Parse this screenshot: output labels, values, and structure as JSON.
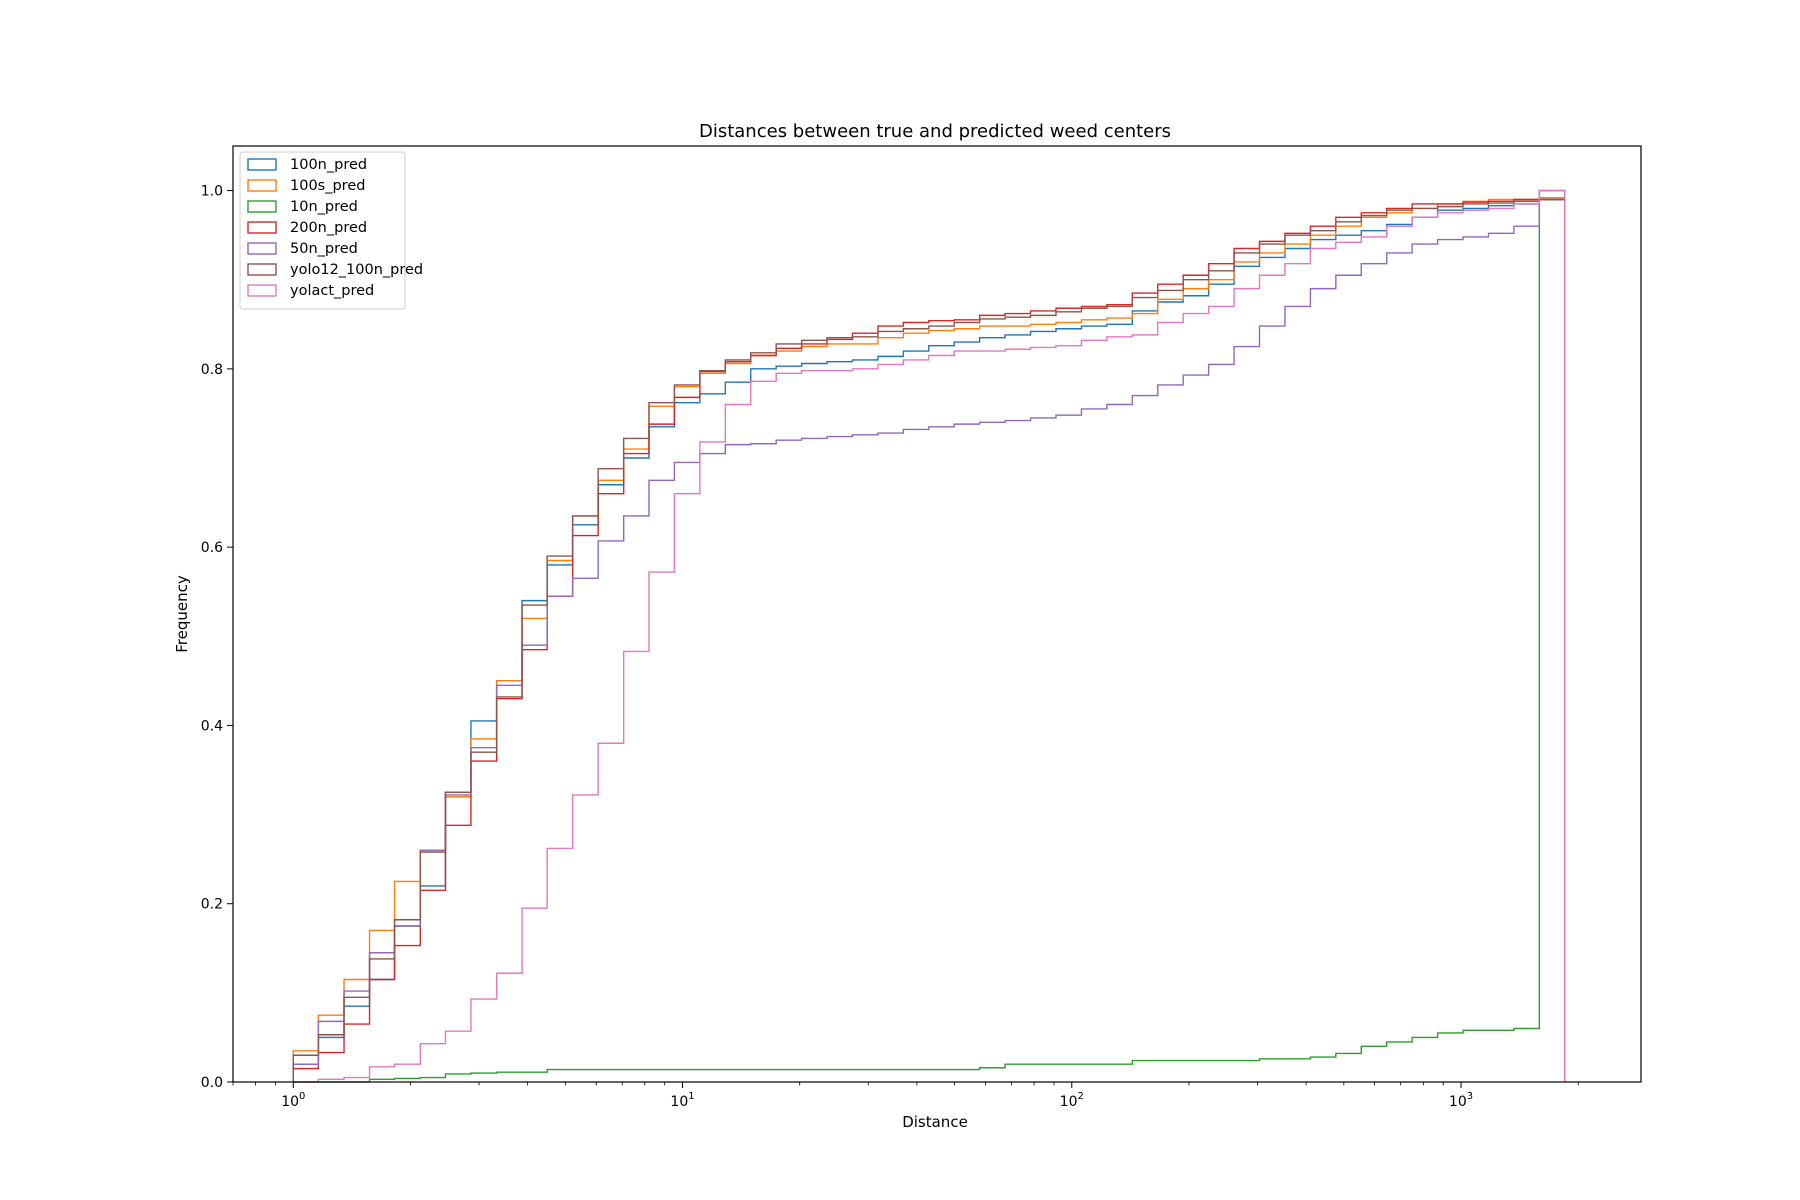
{
  "chart_data": {
    "type": "line",
    "title": "Distances between true and predicted weed centers",
    "xlabel": "Distance",
    "ylabel": "Frequency",
    "xscale": "log",
    "xlim": [
      0.7,
      2900
    ],
    "ylim": [
      0,
      1.05
    ],
    "x_ticks": [
      {
        "value": 1,
        "base": "10",
        "exp": "0"
      },
      {
        "value": 10,
        "base": "10",
        "exp": "1"
      },
      {
        "value": 100,
        "base": "10",
        "exp": "2"
      },
      {
        "value": 1000,
        "base": "10",
        "exp": "3"
      }
    ],
    "y_ticks": [
      "0.0",
      "0.2",
      "0.4",
      "0.6",
      "0.8",
      "1.0"
    ],
    "legend_position": "upper left",
    "histtype": "step-cumulative",
    "bin_edges": [
      1.0,
      1.16,
      1.35,
      1.57,
      1.82,
      2.12,
      2.46,
      2.86,
      3.33,
      3.87,
      4.49,
      5.22,
      6.07,
      7.06,
      8.2,
      9.53,
      11.08,
      12.88,
      14.97,
      17.4,
      20.23,
      23.51,
      27.33,
      31.77,
      36.93,
      42.92,
      49.89,
      57.99,
      67.41,
      78.36,
      91.08,
      105.87,
      123.07,
      143.06,
      166.29,
      193.3,
      224.69,
      261.18,
      303.6,
      352.91,
      410.22,
      476.85,
      554.29,
      644.31,
      748.95,
      870.59,
      1011.98,
      1176.33,
      1367.37,
      1589.45,
      1847.59
    ],
    "series": [
      {
        "name": "100n_pred",
        "color": "#1f77b4",
        "values": [
          0.02,
          0.05,
          0.085,
          0.115,
          0.175,
          0.22,
          0.325,
          0.405,
          0.45,
          0.54,
          0.58,
          0.625,
          0.67,
          0.7,
          0.735,
          0.762,
          0.772,
          0.785,
          0.8,
          0.803,
          0.806,
          0.808,
          0.81,
          0.814,
          0.82,
          0.826,
          0.83,
          0.835,
          0.838,
          0.842,
          0.845,
          0.848,
          0.85,
          0.865,
          0.875,
          0.882,
          0.895,
          0.915,
          0.925,
          0.935,
          0.945,
          0.95,
          0.955,
          0.962,
          0.97,
          0.978,
          0.98,
          0.983,
          0.985,
          0.99
        ]
      },
      {
        "name": "100s_pred",
        "color": "#ff7f0e",
        "values": [
          0.035,
          0.075,
          0.115,
          0.17,
          0.225,
          0.26,
          0.32,
          0.385,
          0.45,
          0.52,
          0.585,
          0.635,
          0.675,
          0.71,
          0.758,
          0.78,
          0.795,
          0.806,
          0.815,
          0.82,
          0.825,
          0.828,
          0.828,
          0.835,
          0.84,
          0.843,
          0.845,
          0.848,
          0.848,
          0.85,
          0.852,
          0.855,
          0.857,
          0.862,
          0.878,
          0.89,
          0.9,
          0.92,
          0.93,
          0.94,
          0.95,
          0.96,
          0.97,
          0.975,
          0.98,
          0.985,
          0.988,
          0.99,
          0.99,
          0.992
        ]
      },
      {
        "name": "10n_pred",
        "color": "#2ca02c",
        "values": [
          0,
          0,
          0,
          0.003,
          0.004,
          0.005,
          0.009,
          0.01,
          0.011,
          0.011,
          0.014,
          0.014,
          0.014,
          0.014,
          0.014,
          0.014,
          0.014,
          0.014,
          0.014,
          0.014,
          0.014,
          0.014,
          0.014,
          0.014,
          0.014,
          0.014,
          0.014,
          0.016,
          0.02,
          0.02,
          0.02,
          0.02,
          0.02,
          0.024,
          0.024,
          0.024,
          0.024,
          0.024,
          0.026,
          0.026,
          0.028,
          0.032,
          0.04,
          0.045,
          0.05,
          0.055,
          0.058,
          0.058,
          0.06,
          1.0
        ]
      },
      {
        "name": "200n_pred",
        "color": "#d62728",
        "values": [
          0.015,
          0.033,
          0.065,
          0.115,
          0.153,
          0.215,
          0.288,
          0.36,
          0.43,
          0.485,
          0.545,
          0.613,
          0.66,
          0.705,
          0.738,
          0.768,
          0.797,
          0.808,
          0.815,
          0.823,
          0.828,
          0.833,
          0.84,
          0.848,
          0.852,
          0.854,
          0.855,
          0.86,
          0.862,
          0.865,
          0.868,
          0.87,
          0.872,
          0.885,
          0.895,
          0.905,
          0.918,
          0.935,
          0.943,
          0.952,
          0.96,
          0.97,
          0.975,
          0.98,
          0.985,
          0.985,
          0.987,
          0.988,
          0.99,
          0.99
        ]
      },
      {
        "name": "50n_pred",
        "color": "#9467bd",
        "values": [
          0.02,
          0.068,
          0.102,
          0.145,
          0.175,
          0.26,
          0.322,
          0.375,
          0.445,
          0.49,
          0.545,
          0.565,
          0.607,
          0.635,
          0.675,
          0.695,
          0.705,
          0.715,
          0.716,
          0.72,
          0.722,
          0.724,
          0.726,
          0.728,
          0.732,
          0.735,
          0.738,
          0.74,
          0.742,
          0.745,
          0.748,
          0.755,
          0.76,
          0.77,
          0.782,
          0.793,
          0.805,
          0.825,
          0.848,
          0.87,
          0.89,
          0.905,
          0.918,
          0.93,
          0.94,
          0.945,
          0.948,
          0.952,
          0.96,
          1.0
        ]
      },
      {
        "name": "yolo12_100n_pred",
        "color": "#8c564b",
        "values": [
          0.03,
          0.053,
          0.095,
          0.138,
          0.182,
          0.258,
          0.325,
          0.37,
          0.432,
          0.535,
          0.59,
          0.635,
          0.688,
          0.722,
          0.762,
          0.782,
          0.798,
          0.81,
          0.818,
          0.828,
          0.832,
          0.835,
          0.836,
          0.842,
          0.845,
          0.848,
          0.852,
          0.856,
          0.858,
          0.86,
          0.864,
          0.868,
          0.87,
          0.88,
          0.888,
          0.9,
          0.91,
          0.93,
          0.94,
          0.95,
          0.955,
          0.965,
          0.972,
          0.978,
          0.98,
          0.982,
          0.985,
          0.986,
          0.988,
          0.99
        ]
      },
      {
        "name": "yolact_pred",
        "color": "#e377c2",
        "values": [
          0,
          0.003,
          0.005,
          0.017,
          0.02,
          0.043,
          0.057,
          0.093,
          0.122,
          0.195,
          0.262,
          0.322,
          0.38,
          0.483,
          0.572,
          0.66,
          0.718,
          0.76,
          0.786,
          0.795,
          0.798,
          0.798,
          0.8,
          0.805,
          0.81,
          0.815,
          0.82,
          0.82,
          0.822,
          0.824,
          0.826,
          0.832,
          0.836,
          0.838,
          0.852,
          0.862,
          0.87,
          0.89,
          0.905,
          0.918,
          0.935,
          0.942,
          0.948,
          0.96,
          0.97,
          0.975,
          0.978,
          0.98,
          0.985,
          1.0
        ]
      }
    ]
  }
}
